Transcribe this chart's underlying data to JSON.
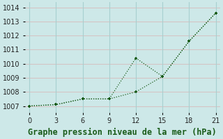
{
  "line1_x": [
    0,
    3,
    6,
    9,
    12,
    15,
    18,
    21
  ],
  "line1_y": [
    1007.0,
    1007.1,
    1007.5,
    1007.5,
    1008.0,
    1009.1,
    1011.6,
    1013.6
  ],
  "line2_x": [
    0,
    3,
    6,
    9,
    12,
    15,
    18,
    21
  ],
  "line2_y": [
    1007.0,
    1007.1,
    1007.5,
    1007.5,
    1010.4,
    1009.1,
    1011.6,
    1013.6
  ],
  "line_color": "#1a5c1a",
  "markersize": 3.5,
  "xlabel": "Graphe pression niveau de la mer (hPa)",
  "xlim": [
    -0.5,
    21.5
  ],
  "ylim": [
    1006.55,
    1014.35
  ],
  "yticks": [
    1007,
    1008,
    1009,
    1010,
    1011,
    1012,
    1013,
    1014
  ],
  "xticks": [
    0,
    3,
    6,
    9,
    12,
    15,
    18,
    21
  ],
  "bg_color": "#cde8e8",
  "grid_color_h": "#d4c4c4",
  "grid_color_v": "#a8d0d0",
  "xlabel_fontsize": 8.5,
  "xlabel_color": "#1a5c1a",
  "tick_labelsize": 7
}
